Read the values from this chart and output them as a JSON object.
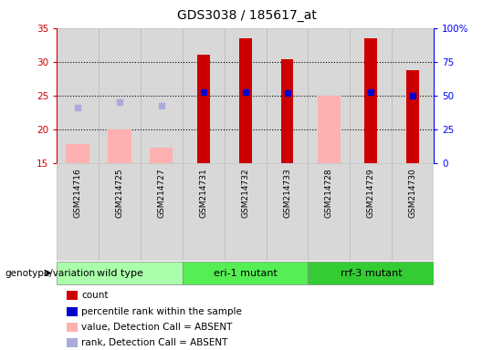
{
  "title": "GDS3038 / 185617_at",
  "samples": [
    "GSM214716",
    "GSM214725",
    "GSM214727",
    "GSM214731",
    "GSM214732",
    "GSM214733",
    "GSM214728",
    "GSM214729",
    "GSM214730"
  ],
  "groups": [
    {
      "label": "wild type",
      "indices": [
        0,
        1,
        2
      ],
      "color": "#aaffaa"
    },
    {
      "label": "eri-1 mutant",
      "indices": [
        3,
        4,
        5
      ],
      "color": "#55ee55"
    },
    {
      "label": "rrf-3 mutant",
      "indices": [
        6,
        7,
        8
      ],
      "color": "#33cc33"
    }
  ],
  "count_values": [
    null,
    null,
    null,
    31.0,
    33.5,
    30.3,
    null,
    33.5,
    28.7
  ],
  "rank_values": [
    null,
    null,
    null,
    25.5,
    25.5,
    25.3,
    null,
    25.5,
    25.0
  ],
  "absent_value_values": [
    17.8,
    20.0,
    17.2,
    null,
    null,
    null,
    25.0,
    null,
    null
  ],
  "absent_rank_values": [
    23.2,
    24.0,
    23.5,
    null,
    null,
    null,
    null,
    null,
    null
  ],
  "ylim_left": [
    15,
    35
  ],
  "ylim_right": [
    0,
    100
  ],
  "yticks_left": [
    15,
    20,
    25,
    30,
    35
  ],
  "yticks_right": [
    0,
    25,
    50,
    75,
    100
  ],
  "ytick_labels_right": [
    "0",
    "25",
    "50",
    "75",
    "100%"
  ],
  "bar_width": 0.55,
  "count_color": "#cc0000",
  "rank_color": "#0000cc",
  "absent_value_color": "#ffb0b0",
  "absent_rank_color": "#aaaadd",
  "col_bg_color": "#d8d8d8",
  "plot_bg": "white",
  "legend_items": [
    {
      "color": "#cc0000",
      "marker": "s",
      "label": "count"
    },
    {
      "color": "#0000cc",
      "marker": "s",
      "label": "percentile rank within the sample"
    },
    {
      "color": "#ffb0b0",
      "marker": "s",
      "label": "value, Detection Call = ABSENT"
    },
    {
      "color": "#aaaadd",
      "marker": "s",
      "label": "rank, Detection Call = ABSENT"
    }
  ]
}
